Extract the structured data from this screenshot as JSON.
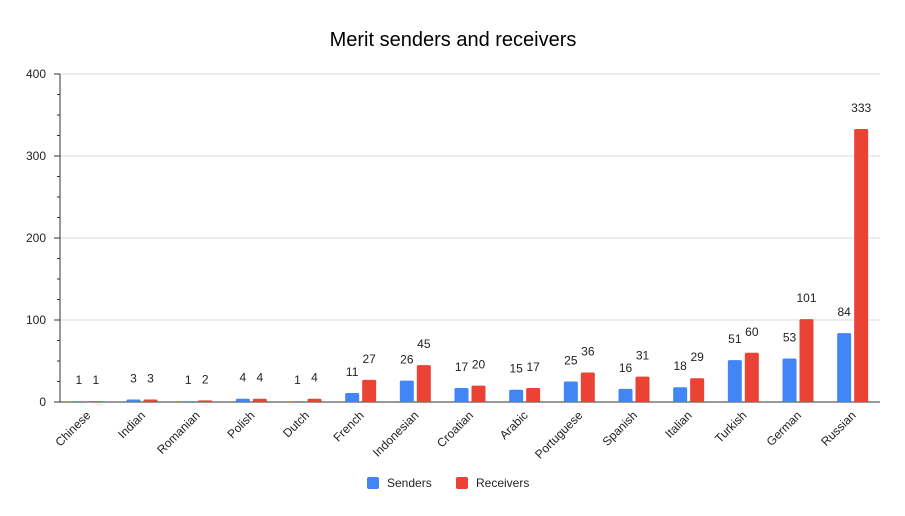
{
  "chart_data": {
    "type": "bar",
    "title": "Merit senders and receivers",
    "xlabel": "",
    "ylabel": "",
    "ylim": [
      0,
      400
    ],
    "yticks": [
      0,
      100,
      200,
      300,
      400
    ],
    "grid": true,
    "legend_position": "bottom",
    "categories": [
      "Chinese",
      "Indian",
      "Romanian",
      "Polish",
      "Dutch",
      "French",
      "Indonesian",
      "Croatian",
      "Arabic",
      "Portuguese",
      "Spanish",
      "Italian",
      "Turkish",
      "German",
      "Russian"
    ],
    "series": [
      {
        "name": "Senders",
        "color": "#4285f4",
        "values": [
          1,
          3,
          1,
          4,
          1,
          11,
          26,
          17,
          15,
          25,
          16,
          18,
          51,
          53,
          84
        ]
      },
      {
        "name": "Receivers",
        "color": "#ea4335",
        "values": [
          1,
          3,
          2,
          4,
          4,
          27,
          45,
          20,
          17,
          36,
          31,
          29,
          60,
          101,
          333
        ]
      }
    ]
  }
}
